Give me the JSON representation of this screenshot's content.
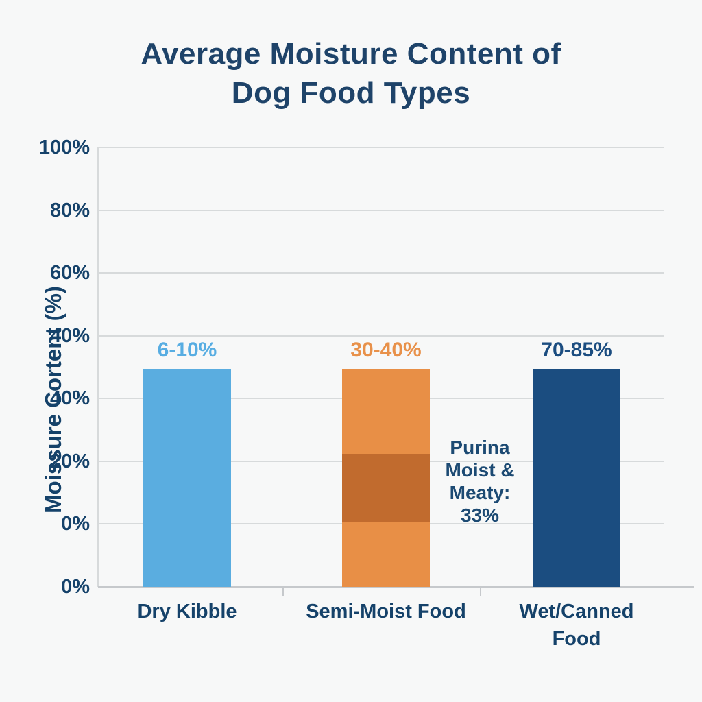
{
  "chart_data": {
    "type": "bar",
    "title": "Average Moisture Content of Dog Food Types",
    "title_display": "Average Moisture Content of\nDog Food Types",
    "ylabel": "Moissure Cortent (%)",
    "xlabel": "",
    "grid": true,
    "legend_position": "none",
    "y_tick_labels": [
      "100%",
      "80%",
      "60%",
      "40%",
      "40%",
      "20%",
      "0%",
      "0%"
    ],
    "categories": [
      "Dry Kibble",
      "Semi-Moist Food",
      "Wet/Canned Food"
    ],
    "bars": [
      {
        "category": "Dry Kibble",
        "tick_display": "Dry Kibble",
        "value_label": "6-10%",
        "value_range_pct": [
          6,
          10
        ],
        "color": "#5aade0",
        "label_color": "#57ade2",
        "bar_height_frac": 0.496
      },
      {
        "category": "Semi-Moist Food",
        "tick_display": "Semi-Moist Food",
        "value_label": "30-40%",
        "value_range_pct": [
          30,
          40
        ],
        "color": "#e88f46",
        "label_color": "#e8914a",
        "bar_height_frac": 0.496,
        "band": {
          "color": "#c16b2e",
          "from_frac": 0.147,
          "to_frac": 0.303
        }
      },
      {
        "category": "Wet/Canned Food",
        "tick_display": "Wet/Canned\nFood",
        "value_label": "70-85%",
        "value_range_pct": [
          70,
          85
        ],
        "color": "#1b4d80",
        "label_color": "#1b4d80",
        "bar_height_frac": 0.496
      }
    ],
    "annotation": "Purina Moist & Meaty: 33%",
    "annotation_display": "Purina\nMoist &\nMeaty:\n33%",
    "annotation_value_pct": 33
  },
  "colors": {
    "background": "#f7f8f8",
    "title_text": "#1e4369",
    "axis_text": "#15426a",
    "gridline": "#d7dadb",
    "axis_line": "#c6c9cc",
    "annotation_text": "#1c4a73"
  }
}
